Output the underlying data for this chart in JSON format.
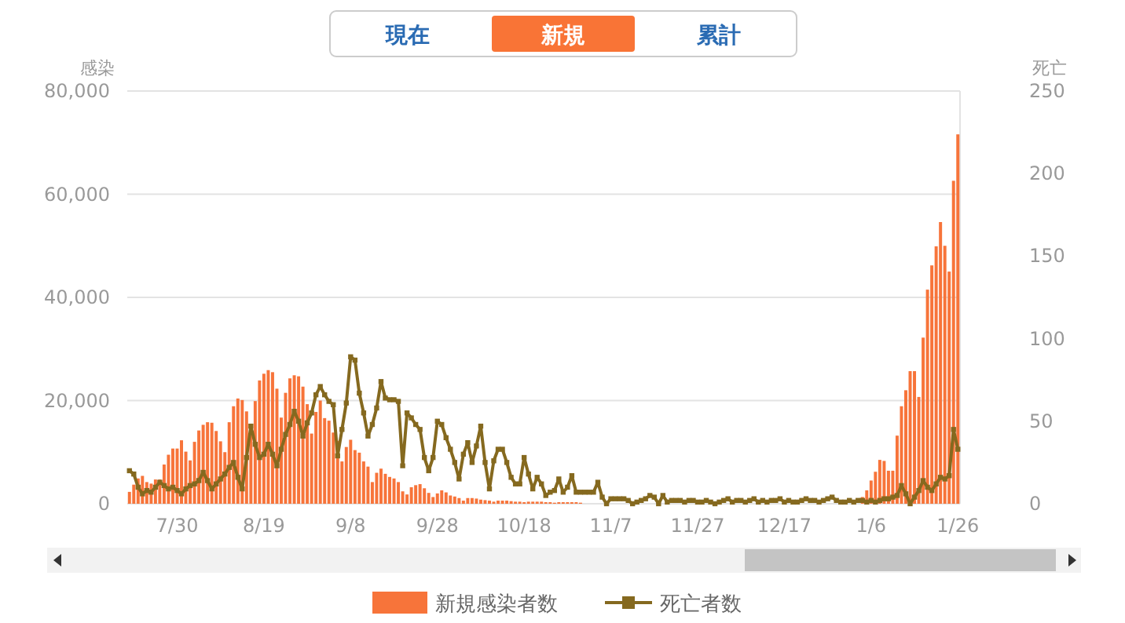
{
  "chart_data": {
    "type": "bar",
    "ylabel": "感染",
    "y2label": "死亡",
    "annotations": [
      "現在",
      "新規",
      "累計"
    ],
    "categories": [
      null,
      null,
      null,
      null,
      null,
      null,
      null,
      null,
      null,
      null,
      null,
      "7/30",
      null,
      null,
      null,
      null,
      null,
      null,
      null,
      null,
      null,
      null,
      null,
      null,
      null,
      null,
      null,
      null,
      null,
      null,
      null,
      "8/19",
      null,
      null,
      null,
      null,
      null,
      null,
      null,
      null,
      null,
      null,
      null,
      null,
      null,
      null,
      null,
      null,
      null,
      null,
      null,
      "9/8",
      null,
      null,
      null,
      null,
      null,
      null,
      null,
      null,
      null,
      null,
      null,
      null,
      null,
      null,
      null,
      null,
      null,
      null,
      null,
      "9/28",
      null,
      null,
      null,
      null,
      null,
      null,
      null,
      null,
      null,
      null,
      null,
      null,
      null,
      null,
      null,
      null,
      null,
      null,
      null,
      "10/18",
      null,
      null,
      null,
      null,
      null,
      null,
      null,
      null,
      null,
      null,
      null,
      null,
      null,
      null,
      null,
      null,
      null,
      null,
      null,
      "11/7",
      null,
      null,
      null,
      null,
      null,
      null,
      null,
      null,
      null,
      null,
      null,
      null,
      null,
      null,
      null,
      null,
      null,
      null,
      null,
      "11/27",
      null,
      null,
      null,
      null,
      null,
      null,
      null,
      null,
      null,
      null,
      null,
      null,
      null,
      null,
      null,
      null,
      null,
      null,
      null,
      "12/17",
      null,
      null,
      null,
      null,
      null,
      null,
      null,
      null,
      null,
      null,
      null,
      null,
      null,
      null,
      null,
      null,
      null,
      null,
      null,
      "1/6",
      null,
      null,
      null,
      null,
      null,
      null,
      null,
      null,
      null,
      null,
      null,
      null,
      null,
      null,
      null,
      null,
      null,
      null,
      null,
      "1/26"
    ],
    "series": [
      {
        "name": "新規感染者数",
        "color": "#f7743a",
        "values": [
          2300,
          3700,
          4900,
          5400,
          4200,
          3900,
          4700,
          4700,
          7600,
          9500,
          10700,
          10700,
          12300,
          10100,
          8400,
          12000,
          14200,
          15300,
          15800,
          15700,
          14100,
          12100,
          10000,
          15800,
          18900,
          20400,
          20100,
          17900,
          14100,
          19900,
          23900,
          25200,
          25900,
          25500,
          22300,
          16700,
          21500,
          24300,
          24900,
          24700,
          22700,
          19300,
          13600,
          17800,
          20000,
          16600,
          16100,
          13800,
          12200,
          8200,
          11000,
          12400,
          10400,
          9900,
          8200,
          7200,
          4200,
          6000,
          6800,
          5800,
          5200,
          4900,
          4200,
          2400,
          1800,
          3200,
          3600,
          3800,
          3000,
          2100,
          1300,
          2000,
          2600,
          2200,
          1600,
          1400,
          1100,
          600,
          1100,
          1100,
          1000,
          800,
          700,
          600,
          400,
          600,
          600,
          600,
          500,
          400,
          400,
          300,
          400,
          400,
          400,
          400,
          300,
          300,
          200,
          300,
          300,
          300,
          300,
          300,
          200,
          null,
          null,
          null,
          null,
          null,
          null,
          null,
          null,
          null,
          null,
          null,
          null,
          null,
          null,
          null,
          null,
          null,
          null,
          null,
          null,
          null,
          null,
          null,
          null,
          null,
          null,
          null,
          null,
          null,
          null,
          null,
          null,
          null,
          null,
          null,
          null,
          null,
          null,
          null,
          null,
          null,
          null,
          null,
          null,
          null,
          null,
          null,
          null,
          null,
          null,
          null,
          null,
          null,
          null,
          null,
          null,
          null,
          null,
          null,
          null,
          null,
          null,
          null,
          null,
          1300,
          2600,
          4500,
          6200,
          8500,
          8300,
          6400,
          6400,
          13200,
          18900,
          22000,
          25700,
          25700,
          20700,
          32200,
          41500,
          46200,
          49900,
          54600,
          50000,
          45000,
          62600,
          71600
        ]
      },
      {
        "name": "死亡者数",
        "type": "line",
        "axis": "y2",
        "color": "#85691f",
        "values": [
          20,
          18,
          10,
          6,
          8,
          7,
          10,
          13,
          11,
          9,
          10,
          8,
          6,
          9,
          11,
          12,
          14,
          19,
          14,
          9,
          12,
          15,
          18,
          22,
          25,
          16,
          9,
          28,
          47,
          36,
          28,
          30,
          36,
          30,
          23,
          33,
          42,
          48,
          56,
          50,
          41,
          49,
          55,
          66,
          71,
          66,
          62,
          60,
          29,
          45,
          61,
          89,
          87,
          67,
          55,
          41,
          48,
          58,
          74,
          64,
          63,
          63,
          62,
          23,
          55,
          52,
          48,
          45,
          28,
          20,
          28,
          50,
          48,
          40,
          33,
          25,
          15,
          30,
          37,
          25,
          35,
          47,
          25,
          9,
          26,
          33,
          33,
          25,
          16,
          12,
          12,
          28,
          18,
          9,
          16,
          12,
          5,
          7,
          8,
          15,
          7,
          10,
          17,
          7,
          7,
          7,
          7,
          7,
          13,
          4,
          0,
          3,
          3,
          3,
          3,
          2,
          0,
          1,
          2,
          3,
          5,
          4,
          0,
          5,
          1,
          2,
          2,
          2,
          1,
          2,
          2,
          1,
          1,
          2,
          1,
          0,
          1,
          2,
          3,
          1,
          2,
          2,
          1,
          2,
          3,
          1,
          2,
          1,
          2,
          2,
          3,
          1,
          2,
          1,
          1,
          2,
          3,
          2,
          2,
          1,
          2,
          3,
          4,
          2,
          1,
          1,
          2,
          1,
          2,
          2,
          1,
          2,
          1,
          2,
          3,
          3,
          4,
          5,
          11,
          6,
          0,
          4,
          8,
          14,
          10,
          8,
          12,
          16,
          15,
          17,
          45,
          33
        ]
      }
    ],
    "ylim": [
      0,
      80000
    ],
    "yticks": [
      0,
      {
        "value": 20000,
        "label": "20,000"
      },
      {
        "value": 40000,
        "label": "40,000"
      },
      {
        "value": 60000,
        "label": "60,000"
      },
      {
        "value": 80000,
        "label": "80,000"
      }
    ],
    "y2lim": [
      0,
      250
    ],
    "y2ticks": [
      0,
      50,
      100,
      150,
      200,
      250
    ],
    "grid": "y",
    "legend": "bottom",
    "marker": "square"
  }
}
